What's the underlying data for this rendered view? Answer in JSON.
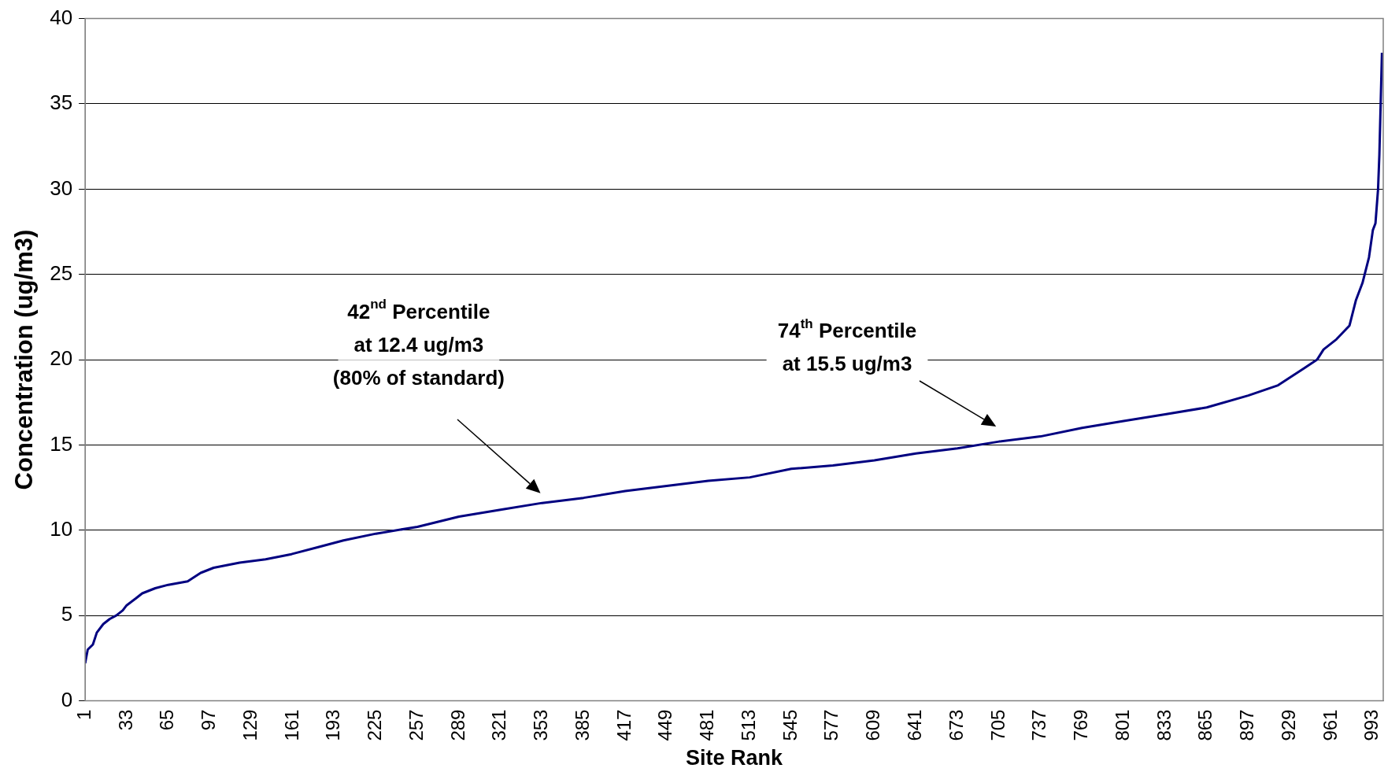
{
  "chart_data": {
    "type": "line",
    "xlabel": "Site Rank",
    "ylabel": "Concentration (ug/m3)",
    "series": [
      {
        "color": "#000080",
        "x": [
          1,
          3,
          7,
          10,
          15,
          20,
          25,
          30,
          33,
          40,
          45,
          55,
          65,
          80,
          90,
          100,
          120,
          140,
          160,
          180,
          200,
          225,
          257,
          289,
          321,
          353,
          385,
          417,
          449,
          481,
          513,
          545,
          577,
          609,
          641,
          673,
          705,
          737,
          769,
          801,
          833,
          865,
          897,
          920,
          940,
          950,
          955,
          965,
          975,
          980,
          985,
          990,
          993,
          995,
          997,
          998,
          1000
        ],
        "values": [
          2.2,
          3.0,
          3.3,
          4.0,
          4.5,
          4.8,
          5.0,
          5.3,
          5.6,
          6.0,
          6.3,
          6.6,
          6.8,
          7.0,
          7.5,
          7.8,
          8.1,
          8.3,
          8.6,
          9.0,
          9.4,
          9.8,
          10.2,
          10.8,
          11.2,
          11.6,
          11.9,
          12.3,
          12.6,
          12.9,
          13.1,
          13.6,
          13.8,
          14.1,
          14.5,
          14.8,
          15.2,
          15.5,
          16.0,
          16.4,
          16.8,
          17.2,
          17.9,
          18.5,
          19.5,
          20.0,
          20.6,
          21.2,
          22.0,
          23.5,
          24.5,
          26.0,
          27.6,
          28.0,
          30.0,
          32.0,
          38.0
        ]
      }
    ],
    "xlim": [
      1,
      1001
    ],
    "xticks": [
      1,
      33,
      65,
      97,
      129,
      161,
      193,
      225,
      257,
      289,
      321,
      353,
      385,
      417,
      449,
      481,
      513,
      545,
      577,
      609,
      641,
      673,
      705,
      737,
      769,
      801,
      833,
      865,
      897,
      929,
      961,
      993
    ],
    "ylim": [
      0,
      40
    ],
    "yticks": [
      0,
      5,
      10,
      15,
      20,
      25,
      30,
      35,
      40
    ],
    "grid": "y",
    "legend": false,
    "marker": "none",
    "line_style": "solid",
    "annotations": [
      "42$^{nd}$ Percentile\nat 12.4 ug/m3\n(80% of standard)",
      "74$^{th}$ Percentile\nat 15.5 ug/m3"
    ]
  }
}
